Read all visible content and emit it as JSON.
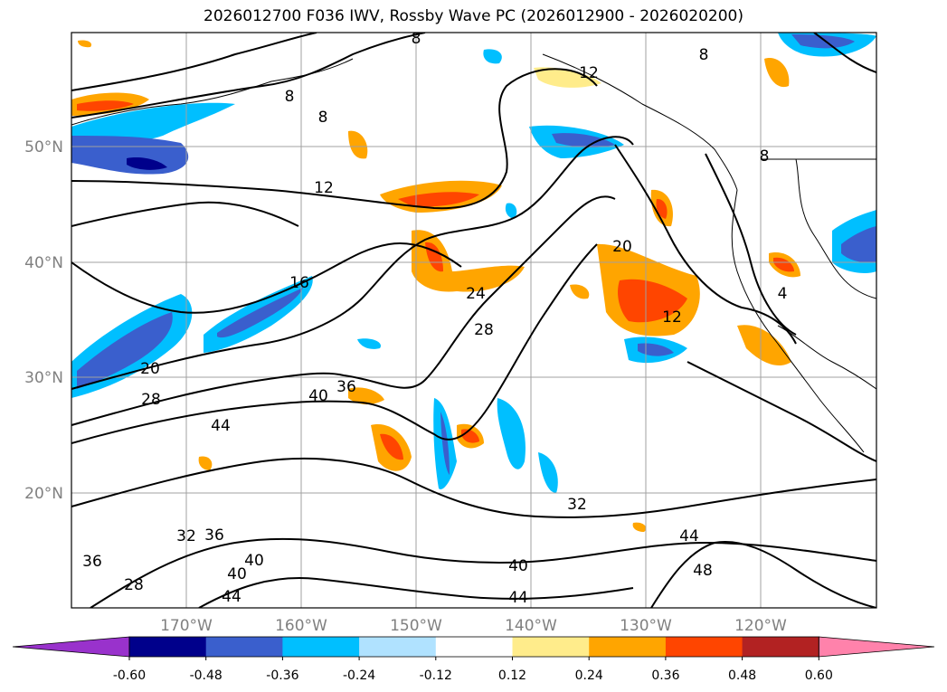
{
  "title": "2026012700 F036 IWV, Rossby Wave PC (2026012900 - 2026020200)",
  "map": {
    "lat_labels": [
      "50°N",
      "40°N",
      "30°N",
      "20°N"
    ],
    "lon_labels": [
      "170°W",
      "160°W",
      "150°W",
      "140°W",
      "130°W",
      "120°W"
    ],
    "contour_labels": [
      "8",
      "8",
      "12",
      "8",
      "8",
      "12",
      "16",
      "20",
      "20",
      "24",
      "28",
      "28",
      "12",
      "40",
      "36",
      "44",
      "32",
      "36",
      "32",
      "40",
      "40",
      "36",
      "44",
      "28",
      "44",
      "40",
      "44",
      "48",
      "8",
      "4"
    ]
  },
  "colorbar": {
    "ticks": [
      "-0.60",
      "-0.48",
      "-0.36",
      "-0.24",
      "-0.12",
      "0.12",
      "0.24",
      "0.36",
      "0.48",
      "0.60"
    ],
    "colors": [
      "#9932cc",
      "#00008b",
      "#3a5fcd",
      "#00bfff",
      "#b0e2ff",
      "#ffffff",
      "#ffec8b",
      "#ffa500",
      "#ff4500",
      "#b22222",
      "#ff82ab"
    ]
  },
  "colors": {
    "contour": "#000000",
    "grid": "#a0a0a0",
    "axis_label": "#808080"
  }
}
